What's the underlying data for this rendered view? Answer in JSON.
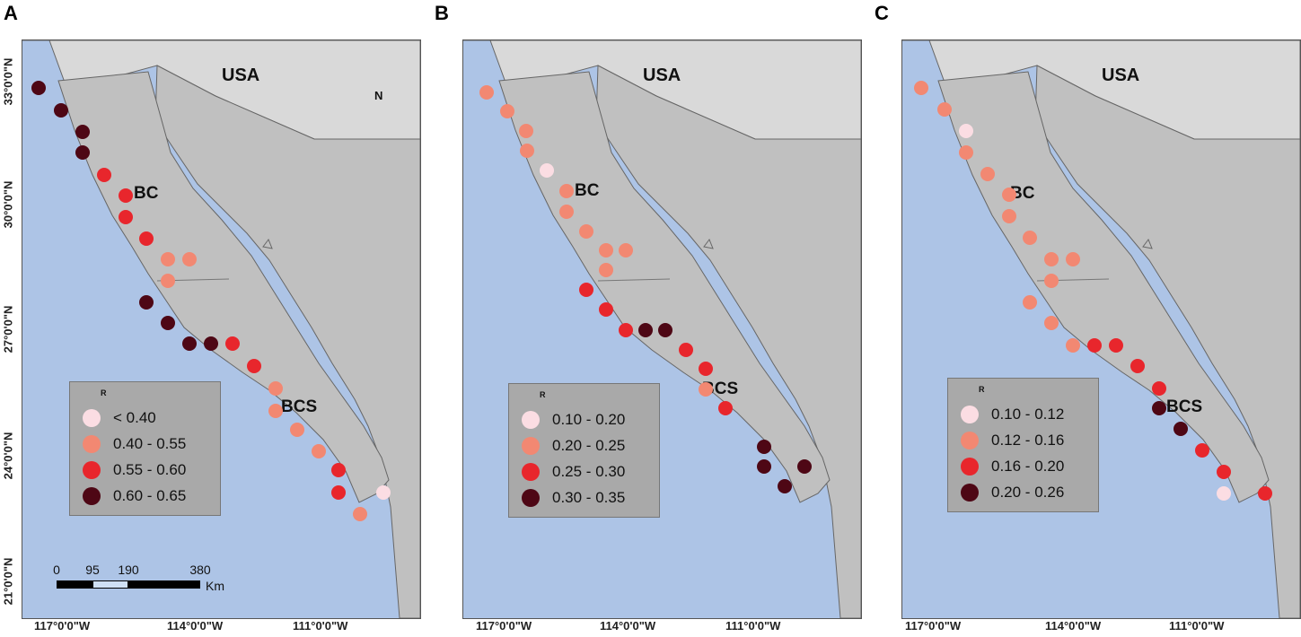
{
  "panels": [
    {
      "letter": "A",
      "country_label": "USA",
      "state_labels": [
        "BC",
        "BCS"
      ],
      "legend": {
        "title": "R",
        "classes": [
          {
            "label": "< 0.40",
            "color": "#fbdde3"
          },
          {
            "label": "0.40 - 0.55",
            "color": "#f28872"
          },
          {
            "label": "0.55 - 0.60",
            "color": "#e8262c"
          },
          {
            "label": "0.60 - 0.65",
            "color": "#4e0715"
          }
        ]
      },
      "sites": [
        3,
        3,
        3,
        3,
        2,
        2,
        2,
        2,
        1,
        1,
        1,
        3,
        3,
        3,
        3,
        2,
        2,
        1,
        1,
        1,
        1,
        2,
        2,
        0,
        1
      ]
    },
    {
      "letter": "B",
      "country_label": "USA",
      "state_labels": [
        "BC",
        "BCS"
      ],
      "legend": {
        "title": "R",
        "classes": [
          {
            "label": "0.10 - 0.20",
            "color": "#fbdde3"
          },
          {
            "label": "0.20 - 0.25",
            "color": "#f28872"
          },
          {
            "label": "0.25 - 0.30",
            "color": "#e8262c"
          },
          {
            "label": "0.30 - 0.35",
            "color": "#4e0715"
          }
        ]
      },
      "sites": [
        1,
        1,
        1,
        1,
        0,
        1,
        1,
        1,
        1,
        1,
        1,
        2,
        2,
        2,
        3,
        3,
        2,
        2,
        1,
        2,
        3,
        3,
        3,
        3
      ]
    },
    {
      "letter": "C",
      "country_label": "USA",
      "state_labels": [
        "BC",
        "BCS"
      ],
      "legend": {
        "title": "R",
        "classes": [
          {
            "label": "0.10 - 0.12",
            "color": "#fbdde3"
          },
          {
            "label": "0.12 - 0.16",
            "color": "#f28872"
          },
          {
            "label": "0.16 - 0.20",
            "color": "#e8262c"
          },
          {
            "label": "0.20 - 0.26",
            "color": "#4e0715"
          }
        ]
      },
      "sites": [
        1,
        1,
        0,
        1,
        1,
        1,
        1,
        1,
        1,
        1,
        1,
        1,
        1,
        1,
        2,
        2,
        2,
        2,
        3,
        3,
        2,
        2,
        0,
        2
      ]
    }
  ],
  "axes": {
    "lat_labels": [
      "33°0'0\"N",
      "30°0'0\"N",
      "27°0'0\"N",
      "24°0'0\"N",
      "21°0'0\"N"
    ],
    "lon_labels": [
      "117°0'0\"W",
      "114°0'0\"W",
      "111°0'0\"W"
    ]
  },
  "scale_bar": {
    "ticks": [
      "0",
      "95",
      "190",
      "380"
    ],
    "unit": "Km"
  },
  "north_arrow": {
    "label": "N"
  },
  "colors": {
    "ocean": "#adc4e6",
    "land": "#c0c0c0",
    "usa": "#d9d9d9"
  }
}
